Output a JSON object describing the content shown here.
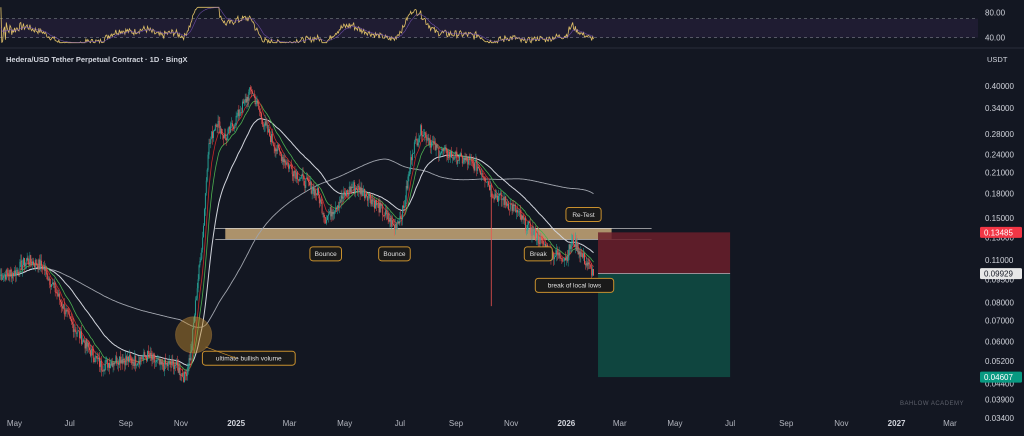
{
  "header": {
    "title": "Hedera/USD Tether Perpetual Contract · 1D · BingX",
    "currency": "USDT",
    "watermark": "BAHLOW ACADEMY"
  },
  "colors": {
    "background": "#131722",
    "candle_up": "#26a69a",
    "candle_down": "#ef5350",
    "ema_short": "#c62828",
    "ema_long": "#d1d4dc",
    "sma_green": "#4caf50",
    "zone": "#c8a878",
    "stop_zone": "#6b1f2a",
    "target_zone": "#0f4a42",
    "annotation_border": "#c8902e",
    "rsi_line": "#e0c068",
    "rsi_band": "#2a2040"
  },
  "chart_data": [
    {
      "type": "line",
      "name": "rsi-pane",
      "y_ticks": [
        "80.00",
        "40.00"
      ],
      "ylim": [
        30,
        90
      ],
      "overbought": 70,
      "oversold": 30
    },
    {
      "type": "candlestick",
      "name": "price-pane",
      "scale": "log",
      "ylim": [
        0.034,
        0.45
      ],
      "x_ticks": [
        "May",
        "Jul",
        "Sep",
        "Nov",
        "2025",
        "Mar",
        "May",
        "Jul",
        "Sep",
        "Nov",
        "2026",
        "Mar",
        "May",
        "Jul",
        "Sep",
        "Nov",
        "2027",
        "Mar"
      ],
      "y_ticks": [
        "0.40000",
        "0.34000",
        "0.28000",
        "0.24000",
        "0.21000",
        "0.18000",
        "0.15000",
        "0.13000",
        "0.11000",
        "0.09500",
        "0.08000",
        "0.07000",
        "0.06000",
        "0.05200",
        "0.04400",
        "0.03900",
        "0.03400"
      ],
      "price_path": [
        [
          "2024-04-15",
          0.098
        ],
        [
          "2024-05-01",
          0.1
        ],
        [
          "2024-05-15",
          0.11
        ],
        [
          "2024-06-01",
          0.105
        ],
        [
          "2024-06-15",
          0.088
        ],
        [
          "2024-07-01",
          0.07
        ],
        [
          "2024-07-20",
          0.058
        ],
        [
          "2024-08-05",
          0.05
        ],
        [
          "2024-08-25",
          0.053
        ],
        [
          "2024-09-10",
          0.052
        ],
        [
          "2024-09-25",
          0.054
        ],
        [
          "2024-10-10",
          0.05
        ],
        [
          "2024-10-25",
          0.051
        ],
        [
          "2024-11-05",
          0.046
        ],
        [
          "2024-11-12",
          0.055
        ],
        [
          "2024-11-18",
          0.085
        ],
        [
          "2024-11-25",
          0.13
        ],
        [
          "2024-12-01",
          0.25
        ],
        [
          "2024-12-10",
          0.31
        ],
        [
          "2024-12-20",
          0.27
        ],
        [
          "2025-01-05",
          0.33
        ],
        [
          "2025-01-18",
          0.39
        ],
        [
          "2025-02-01",
          0.3
        ],
        [
          "2025-02-15",
          0.25
        ],
        [
          "2025-03-01",
          0.22
        ],
        [
          "2025-03-15",
          0.2
        ],
        [
          "2025-04-01",
          0.18
        ],
        [
          "2025-04-10",
          0.15
        ],
        [
          "2025-04-25",
          0.17
        ],
        [
          "2025-05-10",
          0.19
        ],
        [
          "2025-05-25",
          0.18
        ],
        [
          "2025-06-10",
          0.16
        ],
        [
          "2025-06-25",
          0.14
        ],
        [
          "2025-07-05",
          0.16
        ],
        [
          "2025-07-15",
          0.25
        ],
        [
          "2025-07-25",
          0.29
        ],
        [
          "2025-08-10",
          0.25
        ],
        [
          "2025-08-25",
          0.24
        ],
        [
          "2025-09-10",
          0.23
        ],
        [
          "2025-09-25",
          0.22
        ],
        [
          "2025-10-05",
          0.2
        ],
        [
          "2025-10-12",
          0.18
        ],
        [
          "2025-10-25",
          0.17
        ],
        [
          "2025-11-05",
          0.16
        ],
        [
          "2025-11-15",
          0.145
        ],
        [
          "2025-11-25",
          0.135
        ],
        [
          "2025-12-05",
          0.125
        ],
        [
          "2025-12-15",
          0.115
        ],
        [
          "2026-01-01",
          0.112
        ],
        [
          "2026-01-08",
          0.128
        ],
        [
          "2026-01-15",
          0.118
        ],
        [
          "2026-01-25",
          0.105
        ],
        [
          "2026-02-01",
          0.099
        ]
      ],
      "wick": {
        "date": "2025-10-10",
        "low": 0.078
      },
      "horizontal_zone": {
        "from": "2024-12-20",
        "to": "2026-02-20",
        "top": 0.139,
        "bottom": 0.128
      },
      "stop_zone": {
        "from": "2026-02-05",
        "to": "2026-07-01",
        "top": 0.13485,
        "bottom": 0.09929
      },
      "target_zone": {
        "from": "2026-02-05",
        "to": "2026-07-01",
        "top": 0.09929,
        "bottom": 0.04607
      },
      "price_labels": [
        {
          "value": 0.13485,
          "text": "0.13485",
          "style": "red"
        },
        {
          "value": 0.09929,
          "text": "0.09929",
          "style": "light"
        },
        {
          "value": 0.04607,
          "text": "0.04607",
          "style": "green"
        }
      ],
      "circle": {
        "date": "2024-11-15",
        "value": 0.063
      },
      "annotations": [
        {
          "text": "Bounce",
          "date": "2025-04-10",
          "value": 0.115
        },
        {
          "text": "Bounce",
          "date": "2025-06-25",
          "value": 0.115
        },
        {
          "text": "Break",
          "date": "2025-12-01",
          "value": 0.115
        },
        {
          "text": "Re-Test",
          "date": "2026-01-20",
          "value": 0.154
        },
        {
          "text": "break of local lows",
          "date": "2026-01-10",
          "value": 0.091
        },
        {
          "text": "ultimate bullish volume",
          "date": "2025-01-15",
          "value": 0.053
        }
      ]
    }
  ]
}
